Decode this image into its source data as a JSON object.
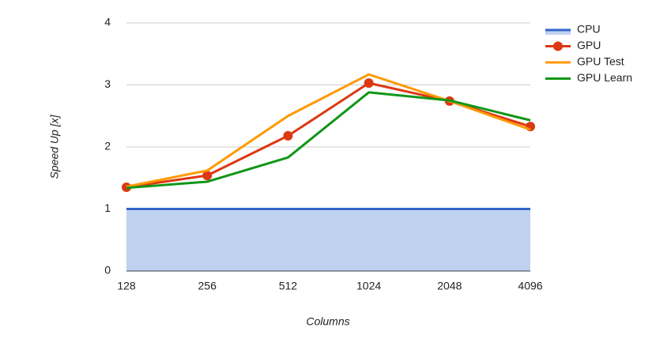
{
  "chart_data": {
    "type": "line",
    "x_label": "Columns",
    "y_label": "Speed Up [x]",
    "categories": [
      "128",
      "256",
      "512",
      "1024",
      "2048",
      "4096"
    ],
    "ylim": [
      0,
      4
    ],
    "yticks": [
      0,
      1,
      2,
      3,
      4
    ],
    "grid": true,
    "legend": "right",
    "series": [
      {
        "name": "CPU",
        "color": "#3366cc",
        "area": true,
        "values": [
          1,
          1,
          1,
          1,
          1,
          1
        ]
      },
      {
        "name": "GPU",
        "color": "#dc3912",
        "marker": true,
        "values": [
          1.35,
          1.54,
          2.18,
          3.03,
          2.74,
          2.33
        ]
      },
      {
        "name": "GPU Test",
        "color": "#ff9900",
        "values": [
          1.36,
          1.62,
          2.5,
          3.17,
          2.74,
          2.28
        ]
      },
      {
        "name": "GPU Learn",
        "color": "#109618",
        "values": [
          1.34,
          1.44,
          1.83,
          2.88,
          2.75,
          2.43
        ]
      }
    ]
  }
}
